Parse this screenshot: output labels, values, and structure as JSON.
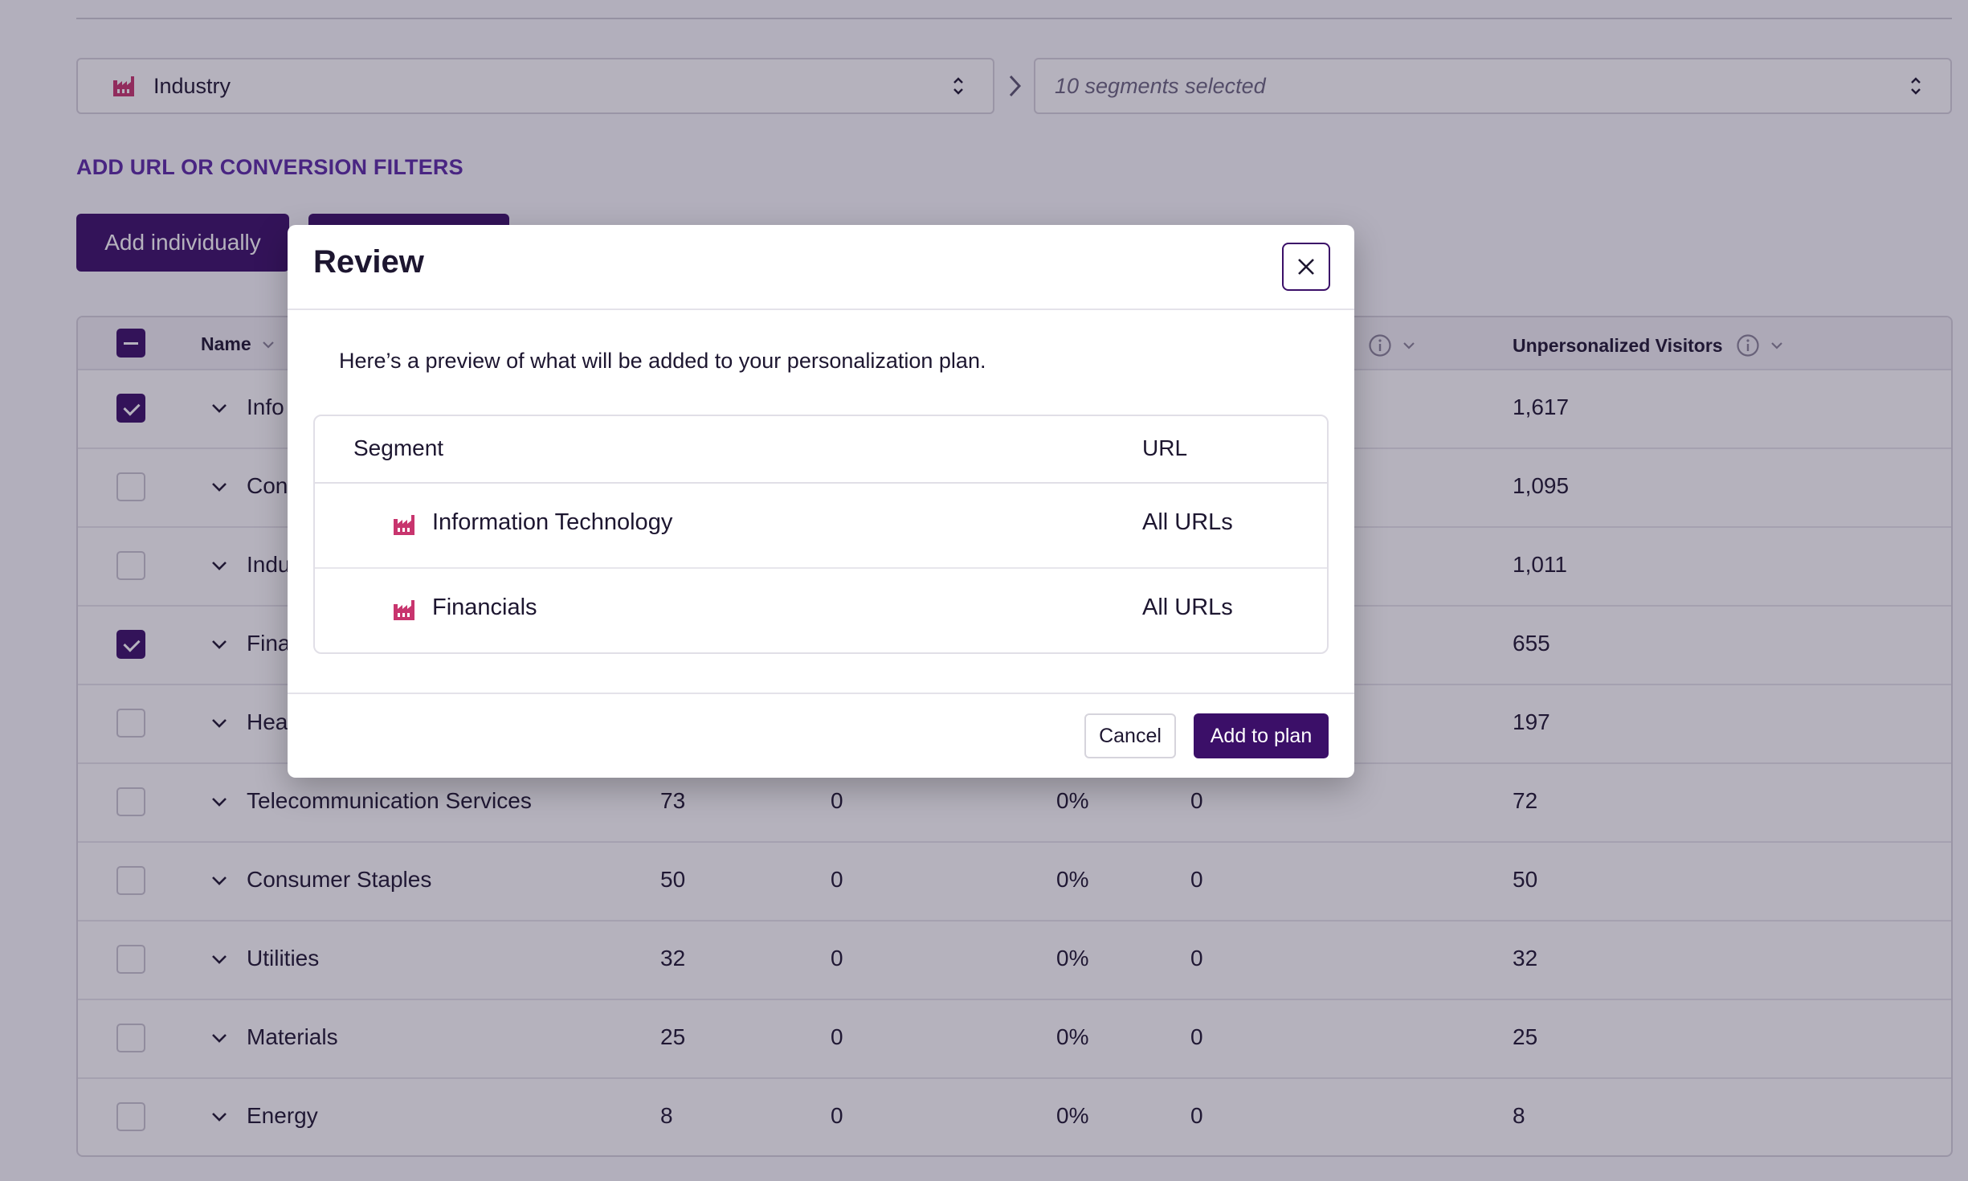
{
  "segment_picker": {
    "category_label": "Industry",
    "segments_placeholder": "10 segments selected"
  },
  "filters_link": "ADD URL OR CONVERSION FILTERS",
  "actions": {
    "add_individually": "Add individually",
    "add_all": ""
  },
  "table": {
    "columns": {
      "name": "Name",
      "unpersonalized_visitors": "Unpersonalized Visitors"
    },
    "rows": [
      {
        "name": "Info",
        "c1": "",
        "c2": "",
        "c3": "",
        "c4": "",
        "unpersonalized": "1,617",
        "checked": true
      },
      {
        "name": "Con",
        "c1": "",
        "c2": "",
        "c3": "",
        "c4": "",
        "unpersonalized": "1,095",
        "checked": false
      },
      {
        "name": "Indu",
        "c1": "",
        "c2": "",
        "c3": "",
        "c4": "",
        "unpersonalized": "1,011",
        "checked": false
      },
      {
        "name": "Fina",
        "c1": "",
        "c2": "",
        "c3": "",
        "c4": "",
        "unpersonalized": "655",
        "checked": true
      },
      {
        "name": "Hea",
        "c1": "",
        "c2": "",
        "c3": "",
        "c4": "",
        "unpersonalized": "197",
        "checked": false
      },
      {
        "name": "Telecommunication Services",
        "c1": "73",
        "c2": "0",
        "c3": "0%",
        "c4": "0",
        "unpersonalized": "72",
        "checked": false
      },
      {
        "name": "Consumer Staples",
        "c1": "50",
        "c2": "0",
        "c3": "0%",
        "c4": "0",
        "unpersonalized": "50",
        "checked": false
      },
      {
        "name": "Utilities",
        "c1": "32",
        "c2": "0",
        "c3": "0%",
        "c4": "0",
        "unpersonalized": "32",
        "checked": false
      },
      {
        "name": "Materials",
        "c1": "25",
        "c2": "0",
        "c3": "0%",
        "c4": "0",
        "unpersonalized": "25",
        "checked": false
      },
      {
        "name": "Energy",
        "c1": "8",
        "c2": "0",
        "c3": "0%",
        "c4": "0",
        "unpersonalized": "8",
        "checked": false
      }
    ]
  },
  "modal": {
    "title": "Review",
    "description": "Here’s a preview of what will be added to your personalization plan.",
    "table": {
      "segment_header": "Segment",
      "url_header": "URL",
      "rows": [
        {
          "segment": "Information Technology",
          "url": "All URLs"
        },
        {
          "segment": "Financials",
          "url": "All URLs"
        }
      ]
    },
    "cancel_label": "Cancel",
    "confirm_label": "Add to plan"
  },
  "icons": {
    "industry": "factory-icon",
    "close": "close-icon",
    "info": "info-icon",
    "sort": "chevron-down-icon"
  },
  "colors": {
    "primary": "#3b0f68",
    "link": "#5b2aa6",
    "industry_icon": "#c8356e"
  }
}
